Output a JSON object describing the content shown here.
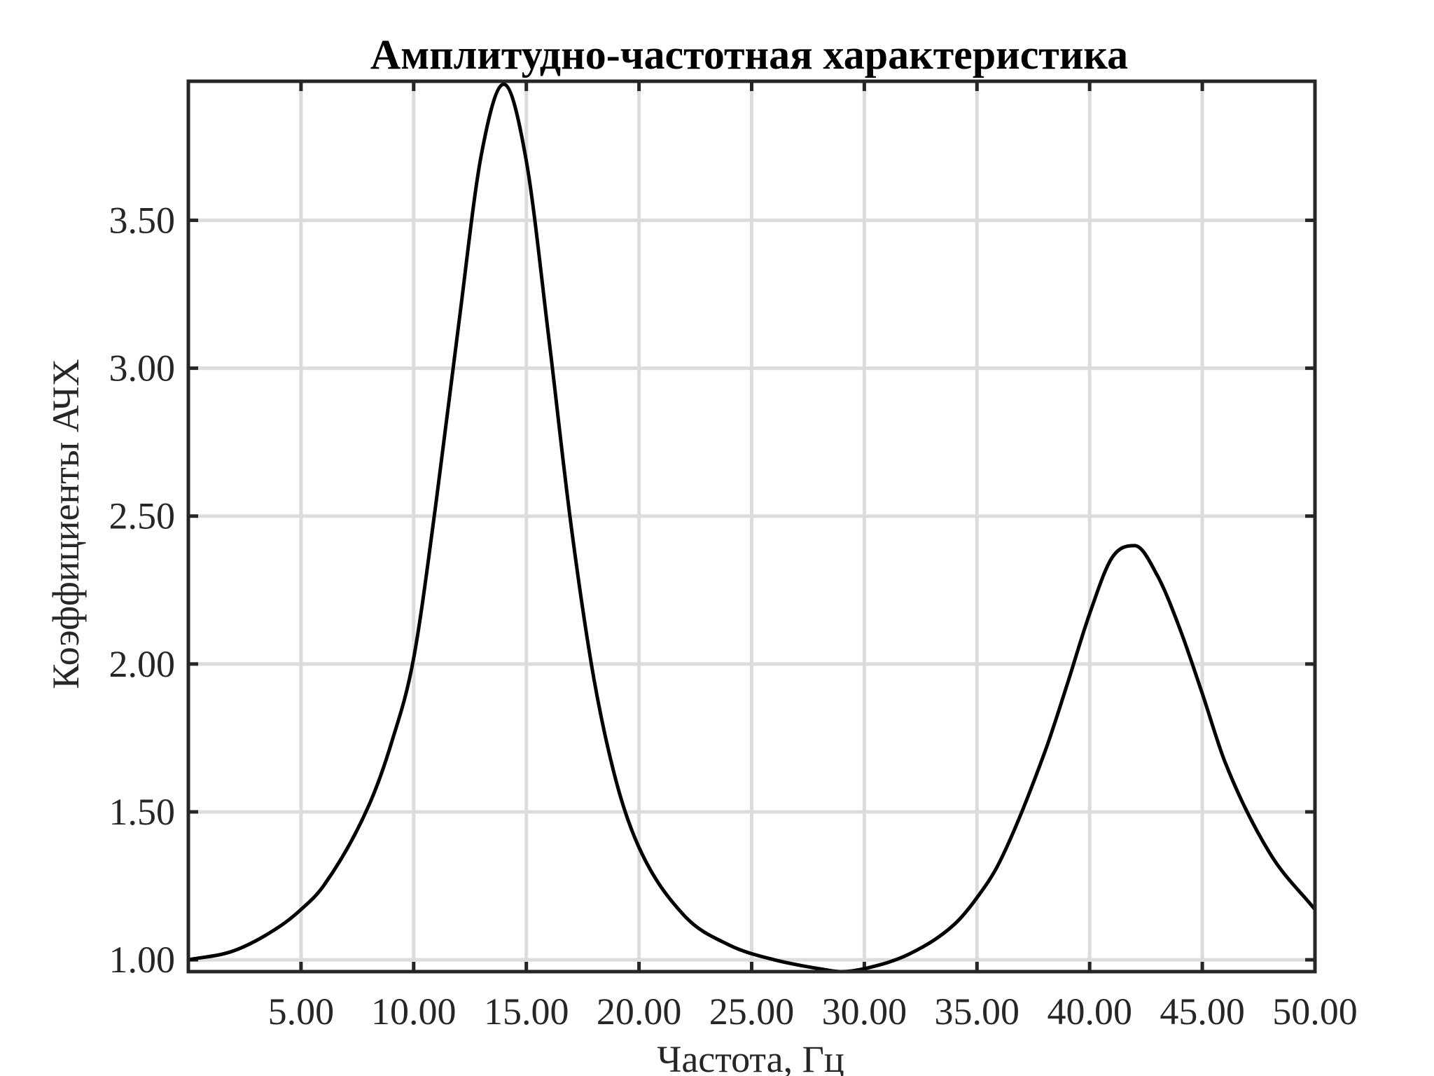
{
  "chart_data": {
    "type": "line",
    "title": "Амплитудно-частотная характеристика",
    "xlabel": "Частота, Гц",
    "ylabel": "Коэффициенты АЧХ",
    "xlim": [
      0,
      50
    ],
    "ylim": [
      0.96,
      3.97
    ],
    "x_ticks": [
      5,
      10,
      15,
      20,
      25,
      30,
      35,
      40,
      45,
      50
    ],
    "x_tick_labels": [
      "5.00",
      "10.00",
      "15.00",
      "20.00",
      "25.00",
      "30.00",
      "35.00",
      "40.00",
      "45.00",
      "50.00"
    ],
    "y_ticks": [
      1.0,
      1.5,
      2.0,
      2.5,
      3.0,
      3.5
    ],
    "y_tick_labels": [
      "1.00",
      "1.50",
      "2.00",
      "2.50",
      "3.00",
      "3.50"
    ],
    "grid": true,
    "series": [
      {
        "color": "#000000",
        "x": [
          0,
          2,
          4,
          5,
          6,
          8,
          9,
          10,
          11,
          12,
          13,
          14,
          15,
          16,
          17,
          18,
          19,
          20,
          22,
          24,
          26,
          28,
          29,
          30,
          32,
          34,
          35,
          36,
          38,
          39,
          40,
          41,
          42,
          43,
          44,
          45,
          46,
          48,
          50
        ],
        "y": [
          1.0,
          1.03,
          1.11,
          1.17,
          1.25,
          1.52,
          1.73,
          2.02,
          2.55,
          3.15,
          3.72,
          3.96,
          3.7,
          3.1,
          2.46,
          1.95,
          1.6,
          1.38,
          1.15,
          1.05,
          1.0,
          0.97,
          0.96,
          0.97,
          1.02,
          1.12,
          1.21,
          1.33,
          1.7,
          1.93,
          2.17,
          2.36,
          2.4,
          2.3,
          2.12,
          1.9,
          1.67,
          1.36,
          1.17
        ]
      }
    ]
  }
}
